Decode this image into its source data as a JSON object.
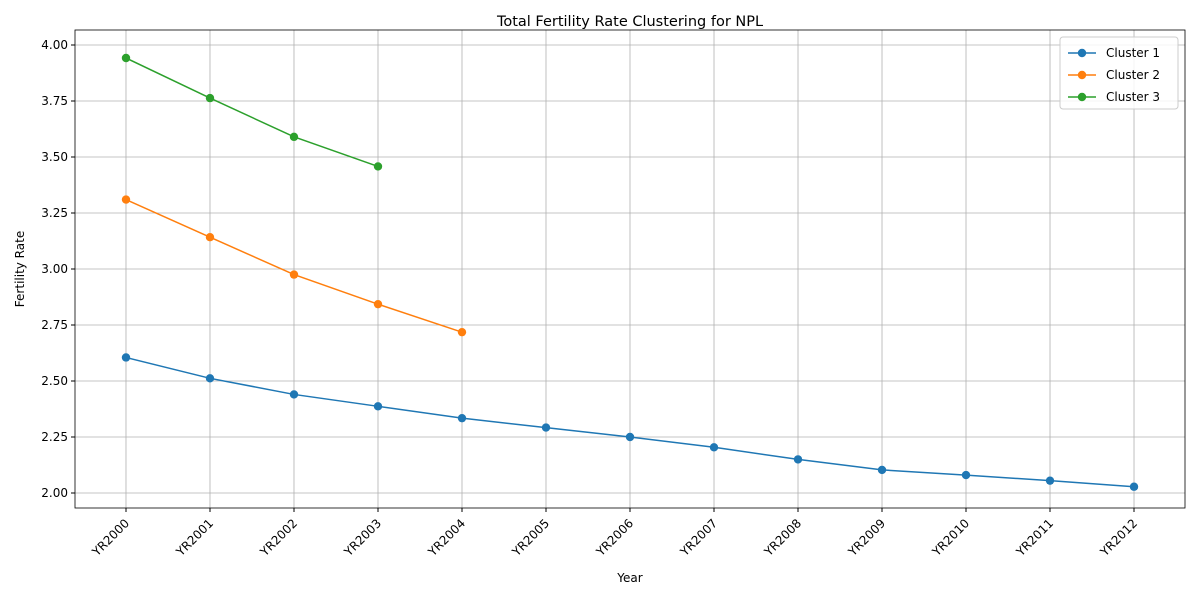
{
  "chart_data": {
    "type": "line",
    "title": "Total Fertility Rate Clustering for NPL",
    "x_label": "Year",
    "y_label": "Fertility Rate",
    "categories": [
      "YR2000",
      "YR2001",
      "YR2002",
      "YR2003",
      "YR2004",
      "YR2005",
      "YR2006",
      "YR2007",
      "YR2008",
      "YR2009",
      "YR2010",
      "YR2011",
      "YR2012"
    ],
    "series": [
      {
        "name": "Cluster 1",
        "color": "#1f77b4",
        "values": [
          2.605,
          2.512,
          2.44,
          2.387,
          2.334,
          2.292,
          2.25,
          2.204,
          2.15,
          2.103,
          2.08,
          2.055,
          2.028
        ]
      },
      {
        "name": "Cluster 2",
        "color": "#ff7f0e",
        "values": [
          3.31,
          3.142,
          2.975,
          2.843,
          2.718,
          null,
          null,
          null,
          null,
          null,
          null,
          null,
          null
        ]
      },
      {
        "name": "Cluster 3",
        "color": "#2ca02c",
        "values": [
          3.942,
          3.763,
          3.59,
          3.458,
          null,
          null,
          null,
          null,
          null,
          null,
          null,
          null,
          null
        ]
      }
    ],
    "ylim": [
      1.933,
      4.067
    ],
    "yticks": [
      {
        "value": 2,
        "label": "2.00"
      },
      {
        "value": 2.25,
        "label": "2.25"
      },
      {
        "value": 2.5,
        "label": "2.50"
      },
      {
        "value": 2.75,
        "label": "2.75"
      },
      {
        "value": 3,
        "label": "3.00"
      },
      {
        "value": 3.25,
        "label": "3.25"
      },
      {
        "value": 3.5,
        "label": "3.50"
      },
      {
        "value": 3.75,
        "label": "3.75"
      },
      {
        "value": 4,
        "label": "4.00"
      }
    ],
    "grid": true,
    "legend": "upper right"
  }
}
